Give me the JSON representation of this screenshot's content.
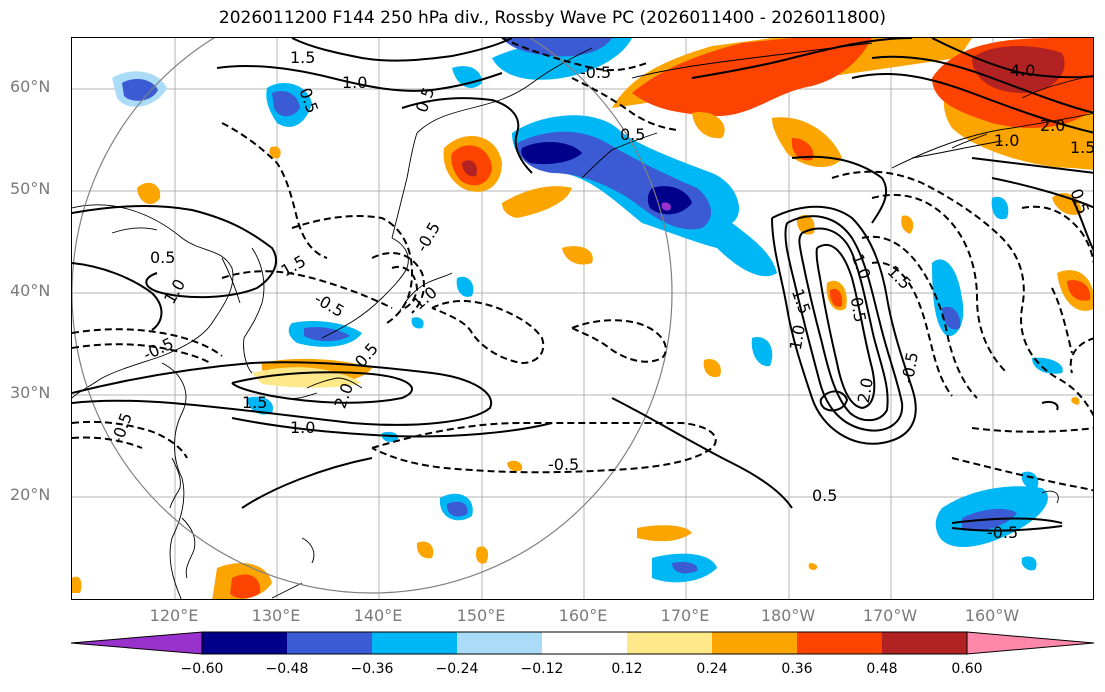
{
  "title": "2026011200 F144 250 hPa div., Rossby Wave PC (2026011400 - 2026011800)",
  "lat_labels": [
    "60°N",
    "50°N",
    "40°N",
    "30°N",
    "20°N"
  ],
  "lon_labels": [
    "120°E",
    "130°E",
    "140°E",
    "150°E",
    "160°E",
    "170°E",
    "180°W",
    "170°W",
    "160°W"
  ],
  "colorbar": {
    "ticks": [
      "−0.60",
      "−0.48",
      "−0.36",
      "−0.24",
      "−0.12",
      "0.12",
      "0.24",
      "0.36",
      "0.48",
      "0.60"
    ],
    "colors": [
      "#9932cc",
      "#00008b",
      "#3a5bd3",
      "#00b7f5",
      "#aadcf8",
      "#ffffff",
      "#fde88a",
      "#fca400",
      "#fc4400",
      "#b22222",
      "#ff88aa"
    ]
  },
  "contour_labels": {
    "l1": "1.5",
    "l2": "1.0",
    "l3": "0.5",
    "l4": "-0.5",
    "l5": "0.5",
    "l6": "4.0",
    "l7": "2.0",
    "l8": "1.0",
    "l9": "1.5",
    "l10": "0.5",
    "l11": "-0.5",
    "l12": "1.5",
    "l13": "-0.5",
    "l14": "1.0",
    "l15": "-0.5",
    "l16": "1.5",
    "l17": "1.0",
    "l18": "-0.5",
    "l19": "2.0",
    "l20": "-0.5",
    "l21": "0.5",
    "l22": "0.5",
    "l23": "1.0",
    "l24": "1.5",
    "l25": "1.5",
    "l26": "1.0",
    "l27": "2.0",
    "l28": "-0.5",
    "l29": "0.5",
    "l30": "1.0",
    "l31": "0.5",
    "l32": "-0.5",
    "l33": "0.5"
  }
}
